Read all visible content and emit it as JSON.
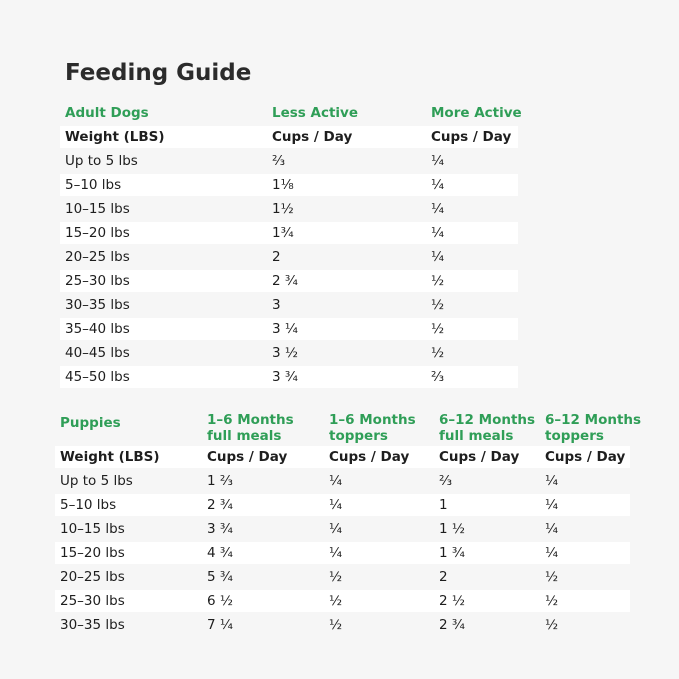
{
  "title": "Feeding Guide",
  "adult": {
    "header": [
      "Adult Dogs",
      "Less Active",
      "More Active"
    ],
    "subheader": [
      "Weight (LBS)",
      "Cups / Day",
      "Cups / Day"
    ],
    "rows": [
      [
        "Up to 5 lbs",
        "⅔",
        "¼"
      ],
      [
        "5–10 lbs",
        "1⅛",
        "¼"
      ],
      [
        "10–15 lbs",
        "1½",
        "¼"
      ],
      [
        "15–20 lbs",
        "1¾",
        "¼"
      ],
      [
        "20–25 lbs",
        "2",
        "¼"
      ],
      [
        "25–30 lbs",
        "2 ¾",
        "½"
      ],
      [
        "30–35 lbs",
        "3",
        "½"
      ],
      [
        "35–40 lbs",
        "3 ¼",
        "½"
      ],
      [
        "40–45 lbs",
        "3 ½",
        "½"
      ],
      [
        "45–50 lbs",
        "3 ¾",
        "⅔"
      ]
    ]
  },
  "puppies": {
    "header": [
      "Puppies",
      "1–6 Months full meals",
      "1–6 Months toppers",
      "6–12 Months full meals",
      "6–12 Months toppers"
    ],
    "subheader": [
      "Weight (LBS)",
      "Cups / Day",
      "Cups / Day",
      "Cups / Day",
      "Cups / Day"
    ],
    "rows": [
      [
        "Up to 5 lbs",
        "1 ⅔",
        "¼",
        "⅔",
        "¼"
      ],
      [
        "5–10 lbs",
        "2 ¾",
        "¼",
        "1",
        "¼"
      ],
      [
        "10–15 lbs",
        "3 ¾",
        "¼",
        "1 ½",
        "¼"
      ],
      [
        "15–20 lbs",
        "4 ¾",
        "¼",
        "1 ¾",
        "¼"
      ],
      [
        "20–25 lbs",
        "5 ¾",
        "½",
        "2",
        "½"
      ],
      [
        "25–30 lbs",
        "6 ½",
        "½",
        "2 ½",
        "½"
      ],
      [
        "30–35 lbs",
        "7 ¼",
        "½",
        "2 ¾",
        "½"
      ]
    ]
  }
}
